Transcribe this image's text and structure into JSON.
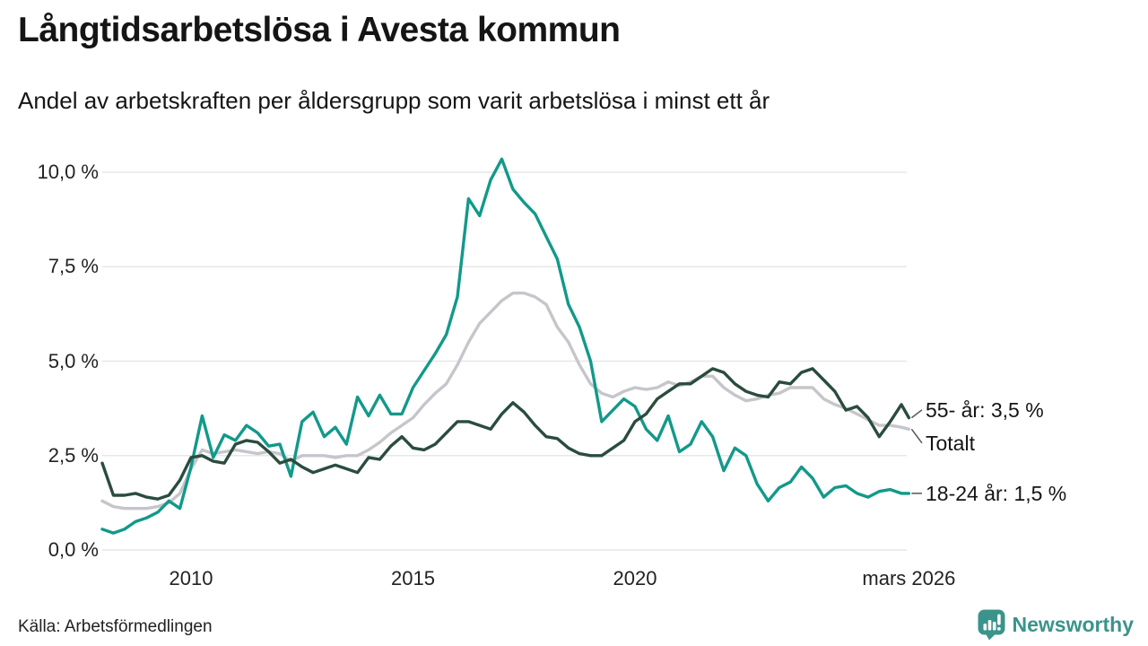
{
  "header": {
    "title": "Långtidsarbetslösa i Avesta kommun",
    "subtitle": "Andel av arbetskraften per åldersgrupp som varit arbetslösa i minst ett år"
  },
  "footer": {
    "source": "Källa: Arbetsförmedlingen",
    "brand": "Newsworthy"
  },
  "colors": {
    "teal": "#12998a",
    "dark_green": "#2a4c3e",
    "gray": "#c6c5cb",
    "grid": "#e7e7e7",
    "connector": "#555555",
    "brand": "#3a948b",
    "text": "#151515"
  },
  "chart_data": {
    "type": "line",
    "title": "Långtidsarbetslösa i Avesta kommun",
    "subtitle": "Andel av arbetskraften per åldersgrupp som varit arbetslösa i minst ett år",
    "xlabel": "",
    "ylabel": "",
    "unit": "%",
    "grid": true,
    "legend_position": "end-of-line annotations, right side",
    "x_axis": {
      "range": [
        2008,
        2026.25
      ],
      "ticks": [
        {
          "label": "2010",
          "year": 2010
        },
        {
          "label": "2015",
          "year": 2015
        },
        {
          "label": "2020",
          "year": 2020
        },
        {
          "label": "mars 2026",
          "year": 2026.17
        }
      ]
    },
    "y_axis": {
      "range": [
        0,
        10.5
      ],
      "ticks": [
        {
          "label": "0,0 %",
          "value": 0
        },
        {
          "label": "2,5 %",
          "value": 2.5
        },
        {
          "label": "5,0 %",
          "value": 5
        },
        {
          "label": "7,5 %",
          "value": 7.5
        },
        {
          "label": "10,0 %",
          "value": 10
        }
      ]
    },
    "x": [
      2008,
      2008.25,
      2008.5,
      2008.75,
      2009,
      2009.25,
      2009.5,
      2009.75,
      2010,
      2010.25,
      2010.5,
      2010.75,
      2011,
      2011.25,
      2011.5,
      2011.75,
      2012,
      2012.25,
      2012.5,
      2012.75,
      2013,
      2013.25,
      2013.5,
      2013.75,
      2014,
      2014.25,
      2014.5,
      2014.75,
      2015,
      2015.25,
      2015.5,
      2015.75,
      2016,
      2016.25,
      2016.5,
      2016.75,
      2017,
      2017.25,
      2017.5,
      2017.75,
      2018,
      2018.25,
      2018.5,
      2018.75,
      2019,
      2019.25,
      2019.5,
      2019.75,
      2020,
      2020.25,
      2020.5,
      2020.75,
      2021,
      2021.25,
      2021.5,
      2021.75,
      2022,
      2022.25,
      2022.5,
      2022.75,
      2023,
      2023.25,
      2023.5,
      2023.75,
      2024,
      2024.25,
      2024.5,
      2024.75,
      2025,
      2025.25,
      2025.5,
      2025.75,
      2026,
      2026.17
    ],
    "series": [
      {
        "name": "Totalt",
        "color": "#c6c5cb",
        "end_label": "Totalt",
        "end_label_value": 2.83,
        "end_value_shown": null,
        "values": [
          1.3,
          1.15,
          1.1,
          1.1,
          1.1,
          1.15,
          1.25,
          1.5,
          2.15,
          2.65,
          2.55,
          2.6,
          2.65,
          2.6,
          2.55,
          2.6,
          2.55,
          2.35,
          2.5,
          2.5,
          2.5,
          2.45,
          2.5,
          2.5,
          2.65,
          2.85,
          3.1,
          3.3,
          3.5,
          3.85,
          4.15,
          4.4,
          4.9,
          5.5,
          6.0,
          6.3,
          6.6,
          6.8,
          6.8,
          6.7,
          6.5,
          5.9,
          5.5,
          4.9,
          4.4,
          4.15,
          4.05,
          4.2,
          4.3,
          4.25,
          4.3,
          4.45,
          4.35,
          4.45,
          4.6,
          4.6,
          4.3,
          4.1,
          3.95,
          4.0,
          4.1,
          4.15,
          4.3,
          4.3,
          4.3,
          4.0,
          3.85,
          3.75,
          3.6,
          3.45,
          3.3,
          3.3,
          3.25,
          3.2
        ]
      },
      {
        "name": "18-24 år",
        "color": "#12998a",
        "end_label": "18-24 år: 1,5 %",
        "end_label_value": 1.5,
        "end_value_shown": "1,5 %",
        "values": [
          0.55,
          0.45,
          0.55,
          0.75,
          0.85,
          1.0,
          1.3,
          1.1,
          2.2,
          3.55,
          2.45,
          3.05,
          2.9,
          3.3,
          3.1,
          2.75,
          2.8,
          1.95,
          3.4,
          3.65,
          3.0,
          3.25,
          2.8,
          4.05,
          3.55,
          4.1,
          3.6,
          3.6,
          4.3,
          4.75,
          5.2,
          5.7,
          6.7,
          9.3,
          8.85,
          9.8,
          10.35,
          9.55,
          9.2,
          8.9,
          8.3,
          7.7,
          6.5,
          5.9,
          5.0,
          3.4,
          3.7,
          4.0,
          3.8,
          3.2,
          2.9,
          3.55,
          2.6,
          2.8,
          3.4,
          3.0,
          2.1,
          2.7,
          2.5,
          1.75,
          1.3,
          1.65,
          1.8,
          2.2,
          1.9,
          1.4,
          1.65,
          1.7,
          1.5,
          1.4,
          1.55,
          1.6,
          1.5,
          1.5
        ]
      },
      {
        "name": "55- år",
        "color": "#2a4c3e",
        "end_label": "55- år: 3,5 %",
        "end_label_value": 3.71,
        "end_value_shown": "3,5 %",
        "values": [
          2.3,
          1.45,
          1.45,
          1.5,
          1.4,
          1.35,
          1.45,
          1.85,
          2.45,
          2.5,
          2.35,
          2.3,
          2.8,
          2.9,
          2.85,
          2.6,
          2.3,
          2.4,
          2.2,
          2.05,
          2.15,
          2.25,
          2.15,
          2.05,
          2.45,
          2.4,
          2.75,
          3.0,
          2.7,
          2.65,
          2.8,
          3.1,
          3.4,
          3.4,
          3.3,
          3.2,
          3.6,
          3.9,
          3.65,
          3.3,
          3.0,
          2.95,
          2.7,
          2.55,
          2.5,
          2.5,
          2.7,
          2.9,
          3.4,
          3.6,
          4.0,
          4.2,
          4.4,
          4.4,
          4.6,
          4.8,
          4.7,
          4.4,
          4.2,
          4.1,
          4.05,
          4.45,
          4.4,
          4.7,
          4.8,
          4.5,
          4.2,
          3.7,
          3.8,
          3.5,
          3.0,
          3.4,
          3.85,
          3.5
        ]
      }
    ]
  }
}
